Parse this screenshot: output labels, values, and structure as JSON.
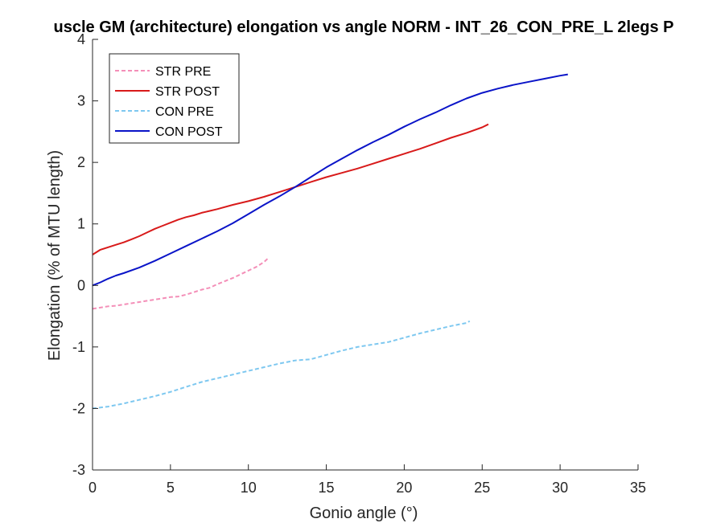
{
  "chart_data": {
    "type": "line",
    "title": "uscle GM (architecture) elongation vs angle NORM - INT_26_CON_PRE_L 2legs P",
    "xlabel": "Gonio angle (°)",
    "ylabel": "Elongation (% of MTU length)",
    "xlim": [
      0,
      35
    ],
    "ylim": [
      -3,
      4
    ],
    "xticks": [
      0,
      5,
      10,
      15,
      20,
      25,
      30,
      35
    ],
    "yticks": [
      -3,
      -2,
      -1,
      0,
      1,
      2,
      3,
      4
    ],
    "grid": false,
    "legend_position": "top-left",
    "series": [
      {
        "name": "STR PRE",
        "color": "#f48fb8",
        "style": "dashed",
        "x": [
          0,
          0.5,
          1,
          1.5,
          2,
          2.5,
          3,
          3.5,
          4,
          4.5,
          5,
          5.5,
          6,
          6.5,
          7,
          7.5,
          8,
          8.5,
          9,
          9.5,
          10,
          10.5,
          11,
          11.3
        ],
        "y": [
          -0.38,
          -0.36,
          -0.34,
          -0.33,
          -0.31,
          -0.29,
          -0.27,
          -0.25,
          -0.23,
          -0.21,
          -0.19,
          -0.18,
          -0.15,
          -0.11,
          -0.07,
          -0.04,
          0.02,
          0.07,
          0.12,
          0.18,
          0.24,
          0.3,
          0.38,
          0.45
        ]
      },
      {
        "name": "STR POST",
        "color": "#d81a1a",
        "style": "solid",
        "x": [
          0,
          0.5,
          1,
          1.5,
          2,
          2.5,
          3,
          3.5,
          4,
          4.5,
          5,
          5.5,
          6,
          6.5,
          7,
          7.5,
          8,
          9,
          10,
          11,
          12,
          13,
          14,
          15,
          16,
          17,
          18,
          19,
          20,
          21,
          22,
          23,
          24,
          25,
          25.4
        ],
        "y": [
          0.5,
          0.58,
          0.62,
          0.66,
          0.7,
          0.75,
          0.8,
          0.86,
          0.92,
          0.97,
          1.02,
          1.07,
          1.11,
          1.14,
          1.18,
          1.21,
          1.24,
          1.31,
          1.37,
          1.44,
          1.52,
          1.6,
          1.68,
          1.76,
          1.83,
          1.9,
          1.98,
          2.06,
          2.14,
          2.22,
          2.31,
          2.4,
          2.48,
          2.57,
          2.62
        ]
      },
      {
        "name": "CON PRE",
        "color": "#7ec8f0",
        "style": "dashed",
        "x": [
          0,
          1,
          2,
          3,
          4,
          5,
          6,
          7,
          8,
          9,
          10,
          11,
          12,
          13,
          14,
          15,
          16,
          17,
          18,
          19,
          20,
          21,
          22,
          23,
          24,
          24.2
        ],
        "y": [
          -2.0,
          -1.97,
          -1.92,
          -1.86,
          -1.8,
          -1.73,
          -1.65,
          -1.57,
          -1.51,
          -1.45,
          -1.39,
          -1.33,
          -1.27,
          -1.22,
          -1.2,
          -1.13,
          -1.06,
          -1.0,
          -0.96,
          -0.92,
          -0.85,
          -0.78,
          -0.72,
          -0.66,
          -0.61,
          -0.58
        ]
      },
      {
        "name": "CON POST",
        "color": "#0a14c8",
        "style": "solid",
        "x": [
          0,
          0.5,
          1,
          1.5,
          2,
          3,
          4,
          5,
          6,
          7,
          8,
          9,
          10,
          11,
          12,
          13,
          14,
          15,
          16,
          17,
          18,
          19,
          20,
          21,
          22,
          23,
          24,
          25,
          26,
          27,
          28,
          29,
          30,
          30.5
        ],
        "y": [
          0.0,
          0.05,
          0.11,
          0.16,
          0.2,
          0.29,
          0.4,
          0.52,
          0.64,
          0.76,
          0.88,
          1.01,
          1.16,
          1.31,
          1.45,
          1.6,
          1.76,
          1.92,
          2.06,
          2.2,
          2.33,
          2.45,
          2.58,
          2.7,
          2.81,
          2.93,
          3.04,
          3.13,
          3.2,
          3.26,
          3.31,
          3.36,
          3.41,
          3.43
        ]
      }
    ]
  }
}
